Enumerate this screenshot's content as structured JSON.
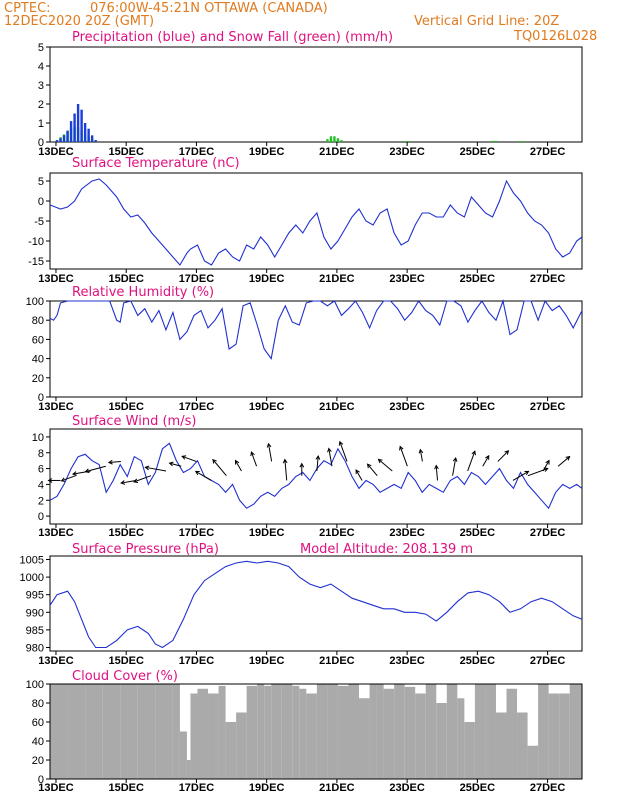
{
  "header": {
    "source": "CPTEC:",
    "location": "076:00W-45:21N   OTTAWA (CANADA)",
    "run": "12DEC2020 20Z (GMT)",
    "grid_note": "Vertical Grid Line: 20Z",
    "code": "TQ0126L028"
  },
  "colors": {
    "precip": "#1a3fd8",
    "snow": "#22c022",
    "line": "#2030d0",
    "cloud": "#aaaaaa",
    "title": "#e0107f",
    "header": "#e07b20"
  },
  "x_ticks": [
    "13DEC",
    "15DEC",
    "17DEC",
    "19DEC",
    "21DEC",
    "23DEC",
    "25DEC",
    "27DEC"
  ],
  "chart_data": [
    {
      "id": "precip",
      "type": "bar",
      "title": "Precipitation (blue) and Snow Fall (green) (mm/h)",
      "xlim": [
        "12DEC2020 20Z",
        "27DEC2020 00Z"
      ],
      "ylim": [
        0,
        5
      ],
      "yticks": [
        "0",
        "1",
        "2",
        "3",
        "4",
        "5"
      ],
      "series": [
        {
          "name": "Precipitation",
          "color": "blue",
          "x": [
            0.2,
            0.3,
            0.4,
            0.5,
            0.6,
            0.7,
            0.8,
            0.9,
            1.0,
            1.1,
            1.2,
            1.3
          ],
          "values": [
            0.1,
            0.2,
            0.35,
            0.6,
            1.1,
            1.5,
            2.0,
            1.7,
            1.0,
            0.7,
            0.35,
            0.1
          ]
        },
        {
          "name": "Snow Fall",
          "color": "green",
          "x": [
            0.2,
            0.3,
            0.4,
            0.5,
            0.6,
            0.7,
            0.8,
            0.9,
            1.0,
            1.1,
            1.2,
            1.3,
            7.9,
            8.0,
            8.1,
            8.2,
            8.3,
            10.1,
            10.2,
            12.6,
            12.7,
            13.4,
            13.5
          ],
          "values": [
            0.1,
            0.25,
            0.4,
            0.55,
            0.7,
            0.8,
            0.75,
            0.6,
            0.4,
            0.3,
            0.2,
            0.1,
            0.15,
            0.3,
            0.3,
            0.2,
            0.1,
            0.05,
            0.05,
            0.06,
            0.06,
            0.05,
            0.05
          ]
        }
      ]
    },
    {
      "id": "temp",
      "type": "line",
      "title": "Surface Temperature (nC)",
      "ylim": [
        -17,
        7
      ],
      "yticks": [
        "5",
        "0",
        "-5",
        "-10",
        "-15"
      ],
      "ytick_values": [
        5,
        0,
        -5,
        -10,
        -15
      ],
      "x": [
        0,
        0.15,
        0.3,
        0.5,
        0.7,
        0.9,
        1.2,
        1.4,
        1.6,
        1.9,
        2.1,
        2.3,
        2.5,
        2.7,
        2.9,
        3.1,
        3.3,
        3.5,
        3.7,
        3.9,
        4.0,
        4.2,
        4.4,
        4.6,
        4.8,
        5.0,
        5.2,
        5.4,
        5.6,
        5.8,
        6.0,
        6.2,
        6.4,
        6.6,
        6.8,
        7.0,
        7.2,
        7.4,
        7.6,
        7.8,
        8.0,
        8.2,
        8.4,
        8.6,
        8.8,
        9.0,
        9.2,
        9.4,
        9.6,
        9.8,
        10.0,
        10.2,
        10.4,
        10.6,
        10.8,
        11.0,
        11.2,
        11.4,
        11.6,
        11.8,
        12.0,
        12.2,
        12.4,
        12.6,
        12.8,
        13.0,
        13.2,
        13.4,
        13.6,
        13.8,
        14.0,
        14.2,
        14.4,
        14.6,
        14.8,
        15.0,
        15.15
      ],
      "values": [
        -1,
        -1.5,
        -2,
        -1.5,
        0,
        3,
        5,
        5.5,
        4,
        1,
        -2,
        -4,
        -3.5,
        -5.5,
        -8,
        -10,
        -12,
        -14,
        -16,
        -13,
        -12,
        -11,
        -15,
        -16,
        -13,
        -12,
        -14,
        -15,
        -11,
        -12,
        -9,
        -11,
        -14,
        -11,
        -8,
        -6,
        -8,
        -5,
        -3,
        -9,
        -12,
        -10,
        -7,
        -4,
        -2,
        -5,
        -6,
        -3,
        -2,
        -8,
        -11,
        -10,
        -6,
        -3,
        -3,
        -4,
        -4,
        -1,
        -3,
        -4,
        1,
        -1,
        -3,
        -4,
        0,
        5,
        2,
        0,
        -3,
        -5,
        -6,
        -8,
        -12,
        -14,
        -13,
        -10,
        -9
      ]
    },
    {
      "id": "rh",
      "type": "line",
      "title": "Relative Humidity (%)",
      "ylim": [
        0,
        100
      ],
      "yticks": [
        "0",
        "20",
        "40",
        "60",
        "80",
        "100"
      ],
      "ytick_values": [
        0,
        20,
        40,
        60,
        80,
        100
      ],
      "x": [
        0,
        0.1,
        0.2,
        0.3,
        0.5,
        0.8,
        1.0,
        1.2,
        1.5,
        1.7,
        1.9,
        2.0,
        2.1,
        2.3,
        2.5,
        2.7,
        2.9,
        3.1,
        3.3,
        3.5,
        3.7,
        3.9,
        4.1,
        4.3,
        4.5,
        4.7,
        4.9,
        5.1,
        5.3,
        5.5,
        5.7,
        5.9,
        6.1,
        6.3,
        6.5,
        6.7,
        6.9,
        7.1,
        7.3,
        7.5,
        7.7,
        7.9,
        8.1,
        8.3,
        8.5,
        8.7,
        8.9,
        9.1,
        9.3,
        9.5,
        9.7,
        9.9,
        10.1,
        10.3,
        10.5,
        10.7,
        10.9,
        11.1,
        11.3,
        11.5,
        11.7,
        11.9,
        12.1,
        12.3,
        12.5,
        12.7,
        12.9,
        13.1,
        13.3,
        13.5,
        13.7,
        13.9,
        14.1,
        14.3,
        14.5,
        14.7,
        14.9,
        15.15
      ],
      "values": [
        82,
        80,
        85,
        98,
        100,
        100,
        100,
        100,
        100,
        100,
        80,
        78,
        98,
        100,
        85,
        92,
        78,
        90,
        70,
        88,
        60,
        68,
        85,
        90,
        72,
        80,
        92,
        50,
        55,
        95,
        98,
        75,
        50,
        40,
        80,
        95,
        78,
        75,
        98,
        100,
        100,
        95,
        100,
        85,
        92,
        100,
        88,
        72,
        90,
        100,
        100,
        92,
        80,
        88,
        100,
        90,
        85,
        75,
        100,
        100,
        95,
        78,
        90,
        100,
        88,
        80,
        100,
        65,
        70,
        100,
        100,
        80,
        100,
        90,
        95,
        85,
        72,
        90
      ]
    },
    {
      "id": "wind",
      "type": "line",
      "title": "Surface Wind (m/s)",
      "ylim": [
        -1,
        11
      ],
      "yticks": [
        "0",
        "2",
        "4",
        "6",
        "8",
        "10"
      ],
      "ytick_values": [
        0,
        2,
        4,
        6,
        8,
        10
      ],
      "x": [
        0,
        0.2,
        0.4,
        0.6,
        0.8,
        1.0,
        1.2,
        1.4,
        1.6,
        1.8,
        2.0,
        2.2,
        2.4,
        2.6,
        2.8,
        3.0,
        3.2,
        3.4,
        3.6,
        3.8,
        4.0,
        4.2,
        4.4,
        4.6,
        4.8,
        5.0,
        5.2,
        5.4,
        5.6,
        5.8,
        6.0,
        6.2,
        6.4,
        6.6,
        6.8,
        7.0,
        7.2,
        7.4,
        7.6,
        7.8,
        8.0,
        8.2,
        8.4,
        8.6,
        8.8,
        9.0,
        9.2,
        9.4,
        9.6,
        9.8,
        10.0,
        10.2,
        10.4,
        10.6,
        10.8,
        11.0,
        11.2,
        11.4,
        11.6,
        11.8,
        12.0,
        12.2,
        12.4,
        12.6,
        12.8,
        13.0,
        13.2,
        13.4,
        13.6,
        13.8,
        14.0,
        14.2,
        14.4,
        14.6,
        14.8,
        15.0,
        15.15
      ],
      "values": [
        2,
        2.5,
        4,
        6,
        7.5,
        7.8,
        7,
        6.5,
        3,
        4.5,
        6.5,
        5,
        7.5,
        7,
        4,
        5.5,
        8.5,
        9.2,
        7,
        5.5,
        6,
        7,
        5,
        4.5,
        4,
        3,
        4,
        2,
        1,
        1.5,
        2.5,
        3,
        2.5,
        3.5,
        4,
        5,
        5.5,
        4.5,
        6,
        7,
        6.5,
        8.5,
        7,
        5,
        3.5,
        4.5,
        4,
        3,
        3.5,
        4,
        3.5,
        5.5,
        4.5,
        3,
        4,
        3.5,
        3,
        4.5,
        5,
        4,
        5.5,
        5,
        4,
        5,
        6,
        4.5,
        3.5,
        5.5,
        4,
        3,
        2,
        1,
        3,
        4,
        3.5,
        4,
        3.5
      ]
    },
    {
      "id": "pressure",
      "type": "line",
      "title": "Surface Pressure (hPa)",
      "annotation": "Model Altitude: 208.139  m",
      "ylim": [
        979,
        1006
      ],
      "yticks": [
        "980",
        "985",
        "990",
        "995",
        "1000",
        "1005"
      ],
      "ytick_values": [
        980,
        985,
        990,
        995,
        1000,
        1005
      ],
      "x": [
        0,
        0.2,
        0.5,
        0.7,
        0.9,
        1.1,
        1.3,
        1.6,
        1.9,
        2.2,
        2.5,
        2.8,
        3.0,
        3.2,
        3.5,
        3.8,
        4.1,
        4.4,
        4.7,
        5.0,
        5.3,
        5.6,
        5.9,
        6.2,
        6.5,
        6.8,
        7.1,
        7.4,
        7.7,
        8.0,
        8.3,
        8.6,
        8.9,
        9.2,
        9.5,
        9.8,
        10.1,
        10.4,
        10.7,
        11.0,
        11.3,
        11.6,
        11.9,
        12.2,
        12.5,
        12.8,
        13.1,
        13.4,
        13.7,
        14.0,
        14.3,
        14.6,
        14.9,
        15.15
      ],
      "values": [
        992,
        995,
        996,
        993,
        988,
        983,
        980,
        980,
        982,
        985,
        986,
        984,
        981,
        980,
        982,
        988,
        995,
        999,
        1001,
        1003,
        1004,
        1004.5,
        1004,
        1004.5,
        1004,
        1003,
        1000,
        998,
        997,
        998,
        996,
        994,
        993,
        992,
        991,
        991,
        990,
        990,
        989.5,
        987.5,
        990,
        993,
        995.5,
        996,
        995,
        993,
        990,
        991,
        993,
        994,
        993,
        991,
        989,
        988
      ]
    },
    {
      "id": "cloud",
      "type": "area",
      "title": "Cloud Cover (%)",
      "ylim": [
        0,
        100
      ],
      "yticks": [
        "0",
        "20",
        "40",
        "60",
        "80",
        "100"
      ],
      "ytick_values": [
        0,
        20,
        40,
        60,
        80,
        100
      ],
      "x": [
        0,
        0.5,
        1.0,
        1.5,
        2.0,
        2.5,
        3.0,
        3.5,
        3.7,
        3.9,
        4.0,
        4.2,
        4.5,
        4.8,
        5.0,
        5.3,
        5.6,
        5.9,
        6.1,
        6.3,
        6.6,
        6.9,
        7.1,
        7.3,
        7.6,
        7.9,
        8.2,
        8.5,
        8.8,
        9.1,
        9.3,
        9.5,
        9.8,
        10.1,
        10.4,
        10.7,
        11.0,
        11.3,
        11.6,
        11.8,
        12.1,
        12.4,
        12.7,
        13.0,
        13.3,
        13.6,
        13.9,
        14.2,
        14.5,
        14.8,
        15.15
      ],
      "values": [
        100,
        100,
        100,
        100,
        100,
        100,
        100,
        100,
        50,
        20,
        90,
        95,
        90,
        98,
        60,
        70,
        98,
        100,
        98,
        100,
        100,
        98,
        95,
        90,
        100,
        100,
        98,
        100,
        85,
        100,
        100,
        95,
        100,
        97,
        90,
        100,
        80,
        100,
        85,
        60,
        100,
        100,
        70,
        95,
        70,
        35,
        100,
        90,
        90,
        100,
        100
      ]
    }
  ]
}
